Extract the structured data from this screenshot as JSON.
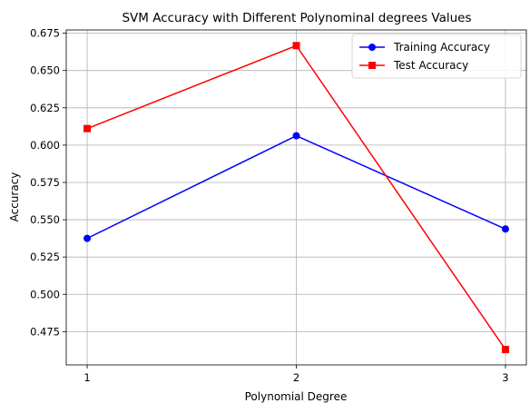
{
  "chart_data": {
    "type": "line",
    "title": "SVM Accuracy with Different Polynominal degrees Values",
    "xlabel": "Polynomial Degree",
    "ylabel": "Accuracy",
    "x": [
      1,
      2,
      3
    ],
    "x_tick_labels": [
      "1",
      "2",
      "3"
    ],
    "y_ticks": [
      0.475,
      0.5,
      0.525,
      0.55,
      0.575,
      0.6,
      0.625,
      0.65,
      0.675
    ],
    "y_tick_labels": [
      "0.475",
      "0.500",
      "0.525",
      "0.550",
      "0.575",
      "0.600",
      "0.625",
      "0.650",
      "0.675"
    ],
    "xlim": [
      0.9,
      3.1
    ],
    "ylim": [
      0.4527,
      0.6772
    ],
    "grid": true,
    "legend_position": "top-right",
    "series": [
      {
        "name": "Training Accuracy",
        "values": [
          0.5375,
          0.6063,
          0.5438
        ],
        "color": "#0000ff",
        "marker": "circle"
      },
      {
        "name": "Test Accuracy",
        "values": [
          0.6111,
          0.6667,
          0.463
        ],
        "color": "#ff0000",
        "marker": "square"
      }
    ]
  }
}
